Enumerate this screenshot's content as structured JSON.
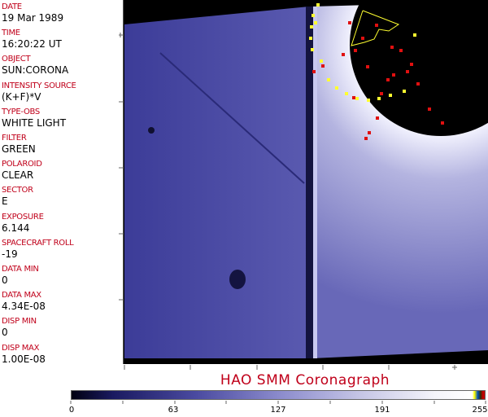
{
  "header_fields": [
    {
      "label": "DATE",
      "value": "19 Mar 1989"
    },
    {
      "label": "TIME",
      "value": "16:20:22 UT"
    },
    {
      "label": "OBJECT",
      "value": "SUN:CORONA"
    },
    {
      "label": "INTENSITY SOURCE",
      "value": "(K+F)*V"
    },
    {
      "label": "TYPE-OBS",
      "value": "WHITE LIGHT"
    },
    {
      "label": "FILTER",
      "value": "GREEN"
    },
    {
      "label": "POLAROID",
      "value": "CLEAR"
    },
    {
      "label": "SECTOR",
      "value": "E"
    },
    {
      "label": "EXPOSURE",
      "value": "6.144"
    },
    {
      "label": "SPACECRAFT ROLL",
      "value": "-19"
    },
    {
      "label": "DATA MIN",
      "value": "0"
    },
    {
      "label": "DATA MAX",
      "value": "4.34E-08"
    },
    {
      "label": "DISP MIN",
      "value": "0"
    },
    {
      "label": "DISP MAX",
      "value": "1.00E-08"
    }
  ],
  "title": "HAO  SMM  Coronagraph",
  "colorbar": {
    "tick_labels": [
      "0",
      "63",
      "127",
      "191",
      "255"
    ],
    "colormap": "black-blue-white",
    "colors": {
      "low": "#000010",
      "mid": "#8a8acc",
      "high": "#ffffff"
    }
  },
  "colors": {
    "label": "#c0001a",
    "image_base": "#5050a8",
    "overlay_red": "#e01010",
    "overlay_yellow": "#ffff30"
  }
}
